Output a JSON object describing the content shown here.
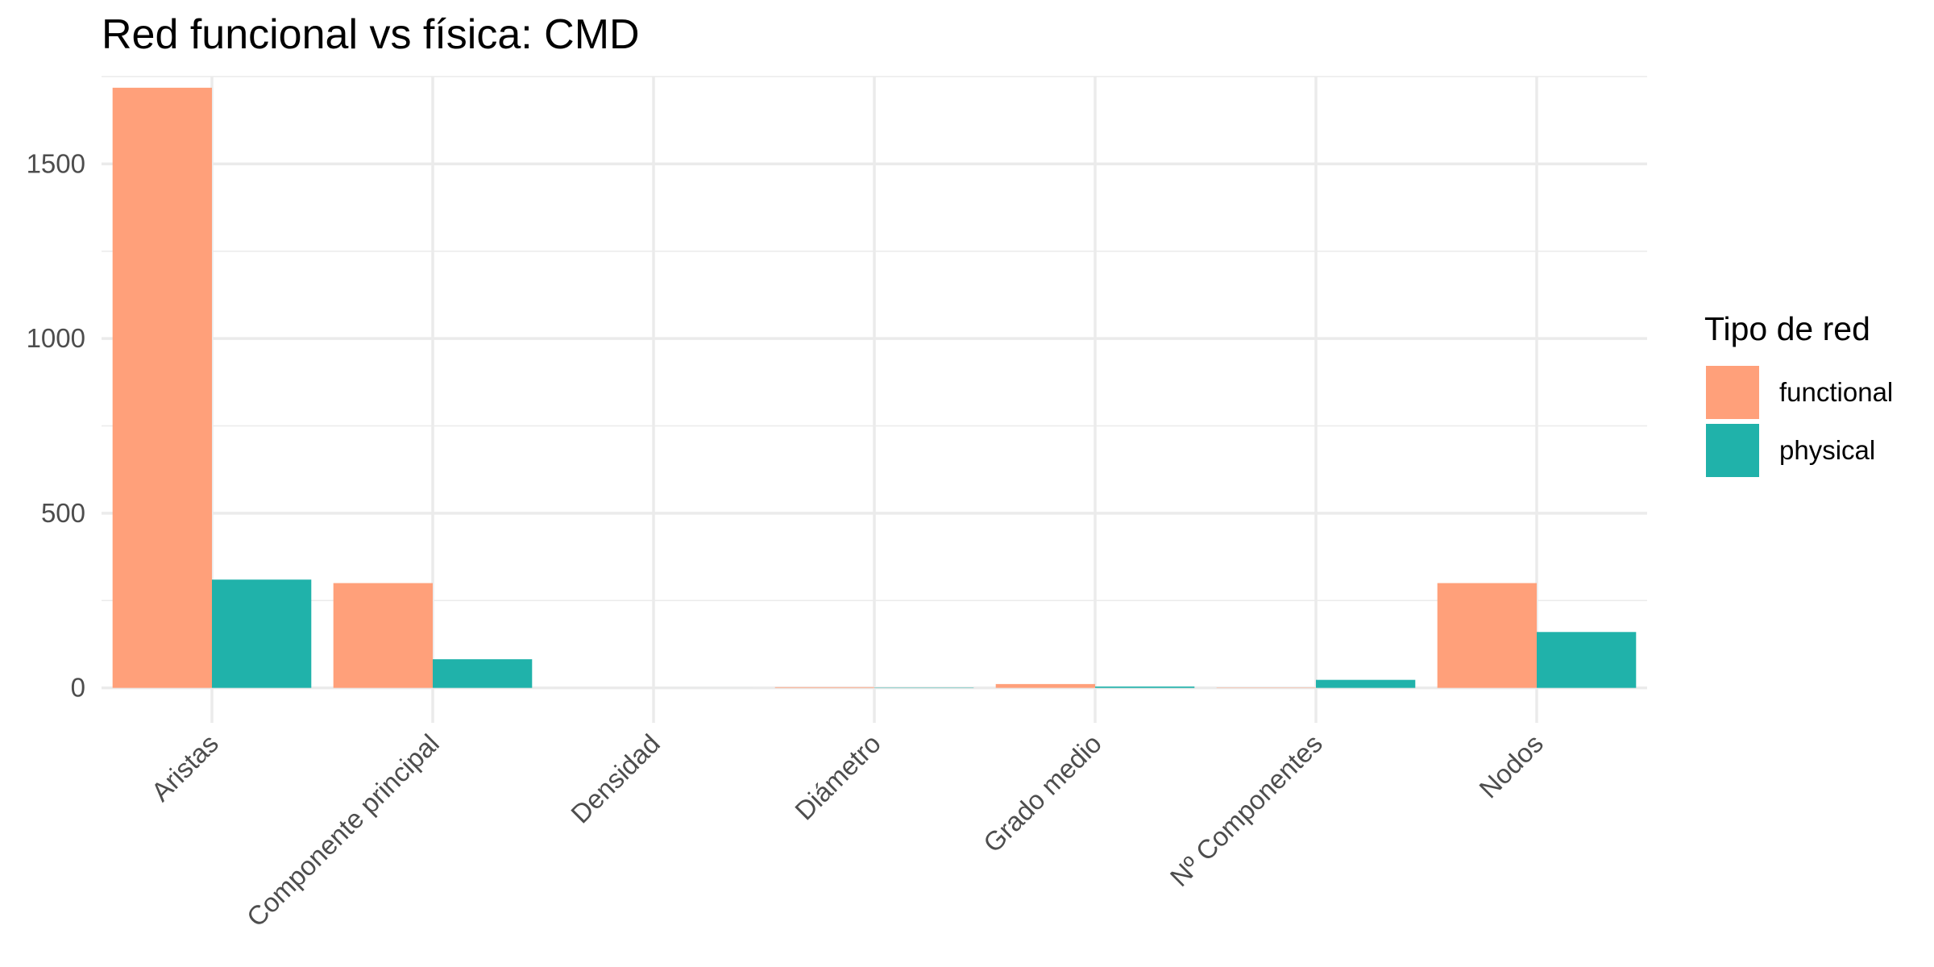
{
  "chart_data": {
    "type": "bar",
    "title": "Red funcional vs física: CMD",
    "xlabel": "",
    "ylabel": "",
    "categories": [
      "Aristas",
      "Componente principal",
      "Densidad",
      "Diámetro",
      "Grado medio",
      "Nº Componentes",
      "Nodos"
    ],
    "series": [
      {
        "name": "functional",
        "color": "#FFA07A",
        "values": [
          1718,
          300,
          0.04,
          2,
          11,
          1,
          300
        ]
      },
      {
        "name": "physical",
        "color": "#20B2AA",
        "values": [
          310,
          82,
          0.03,
          1,
          4,
          23,
          160
        ]
      }
    ],
    "ylim": [
      -100,
      1750
    ],
    "yticks": [
      0,
      500,
      1000,
      1500
    ],
    "ytick_labels": [
      "0",
      "500",
      "1000",
      "1500"
    ],
    "grid": true,
    "legend": {
      "title": "Tipo de red",
      "position": "right"
    }
  }
}
